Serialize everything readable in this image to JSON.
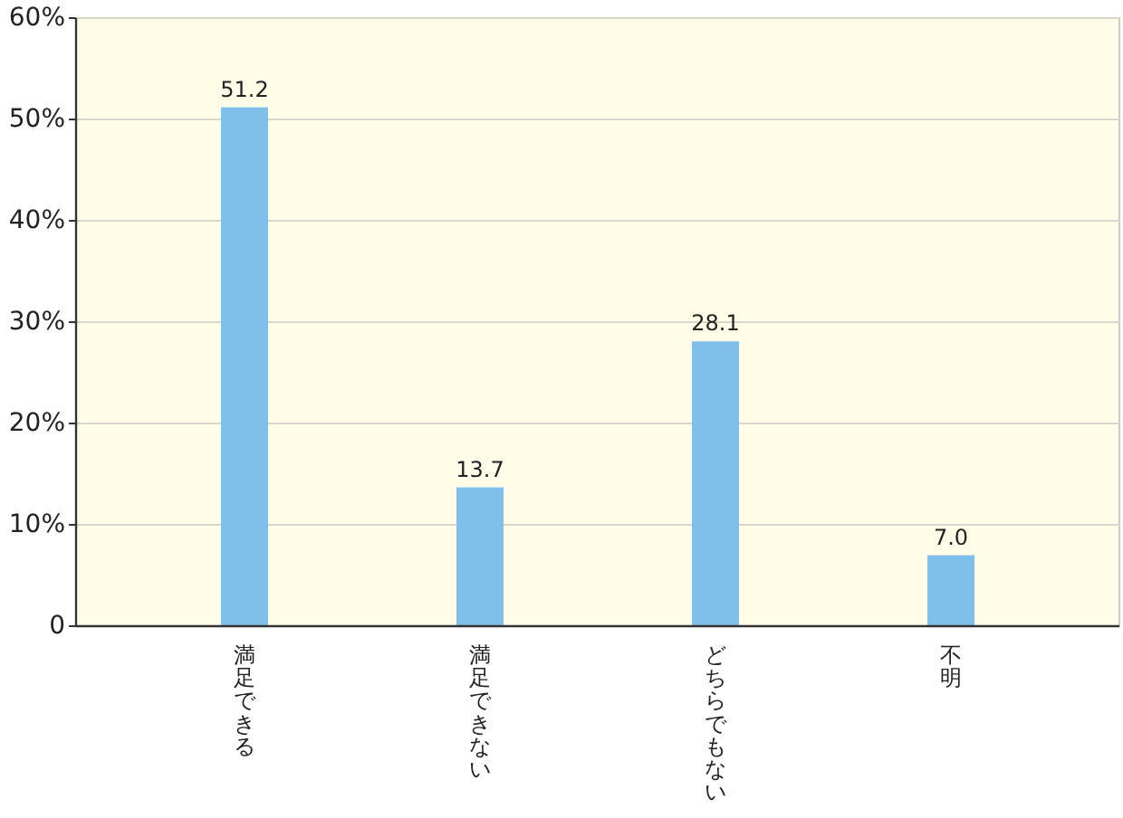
{
  "chart_data": {
    "type": "bar",
    "categories": [
      "満足できる",
      "満足できない",
      "どちらでもない",
      "不明"
    ],
    "values": [
      51.2,
      13.7,
      28.1,
      7.0
    ],
    "value_labels": [
      "51.2",
      "13.7",
      "28.1",
      "7.0"
    ],
    "color": "#80bfea",
    "ylim": [
      0,
      60
    ],
    "yticks": [
      {
        "value": 0,
        "label": "0"
      },
      {
        "value": 10,
        "label": "10%"
      },
      {
        "value": 20,
        "label": "20%"
      },
      {
        "value": 30,
        "label": "30%"
      },
      {
        "value": 40,
        "label": "40%"
      },
      {
        "value": 50,
        "label": "50%"
      },
      {
        "value": 60,
        "label": "60%"
      }
    ],
    "grid": "y"
  }
}
